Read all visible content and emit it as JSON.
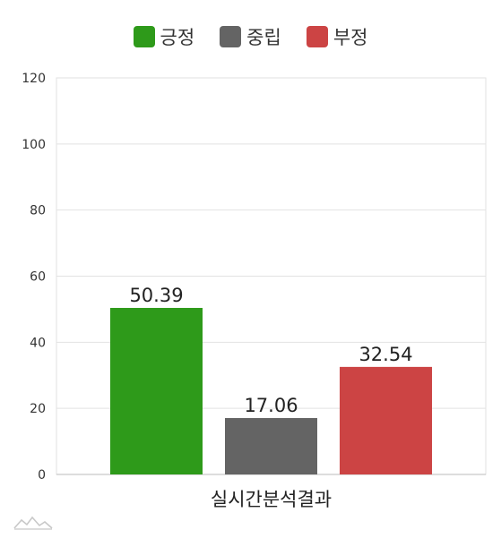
{
  "chart_data": {
    "type": "bar",
    "categories": [
      "실시간분석결과"
    ],
    "series": [
      {
        "name": "긍정",
        "values": [
          50.39
        ],
        "color": "#2e9a1a"
      },
      {
        "name": "중립",
        "values": [
          17.06
        ],
        "color": "#646464"
      },
      {
        "name": "부정",
        "values": [
          32.54
        ],
        "color": "#cc4444"
      }
    ],
    "ylim": [
      0,
      120
    ],
    "yticks": [
      "0",
      "20",
      "40",
      "60",
      "80",
      "100",
      "120"
    ],
    "data_labels": [
      "50.39",
      "17.06",
      "32.54"
    ],
    "grid": true,
    "legend": "top-center",
    "xlabel": "",
    "ylabel": ""
  }
}
